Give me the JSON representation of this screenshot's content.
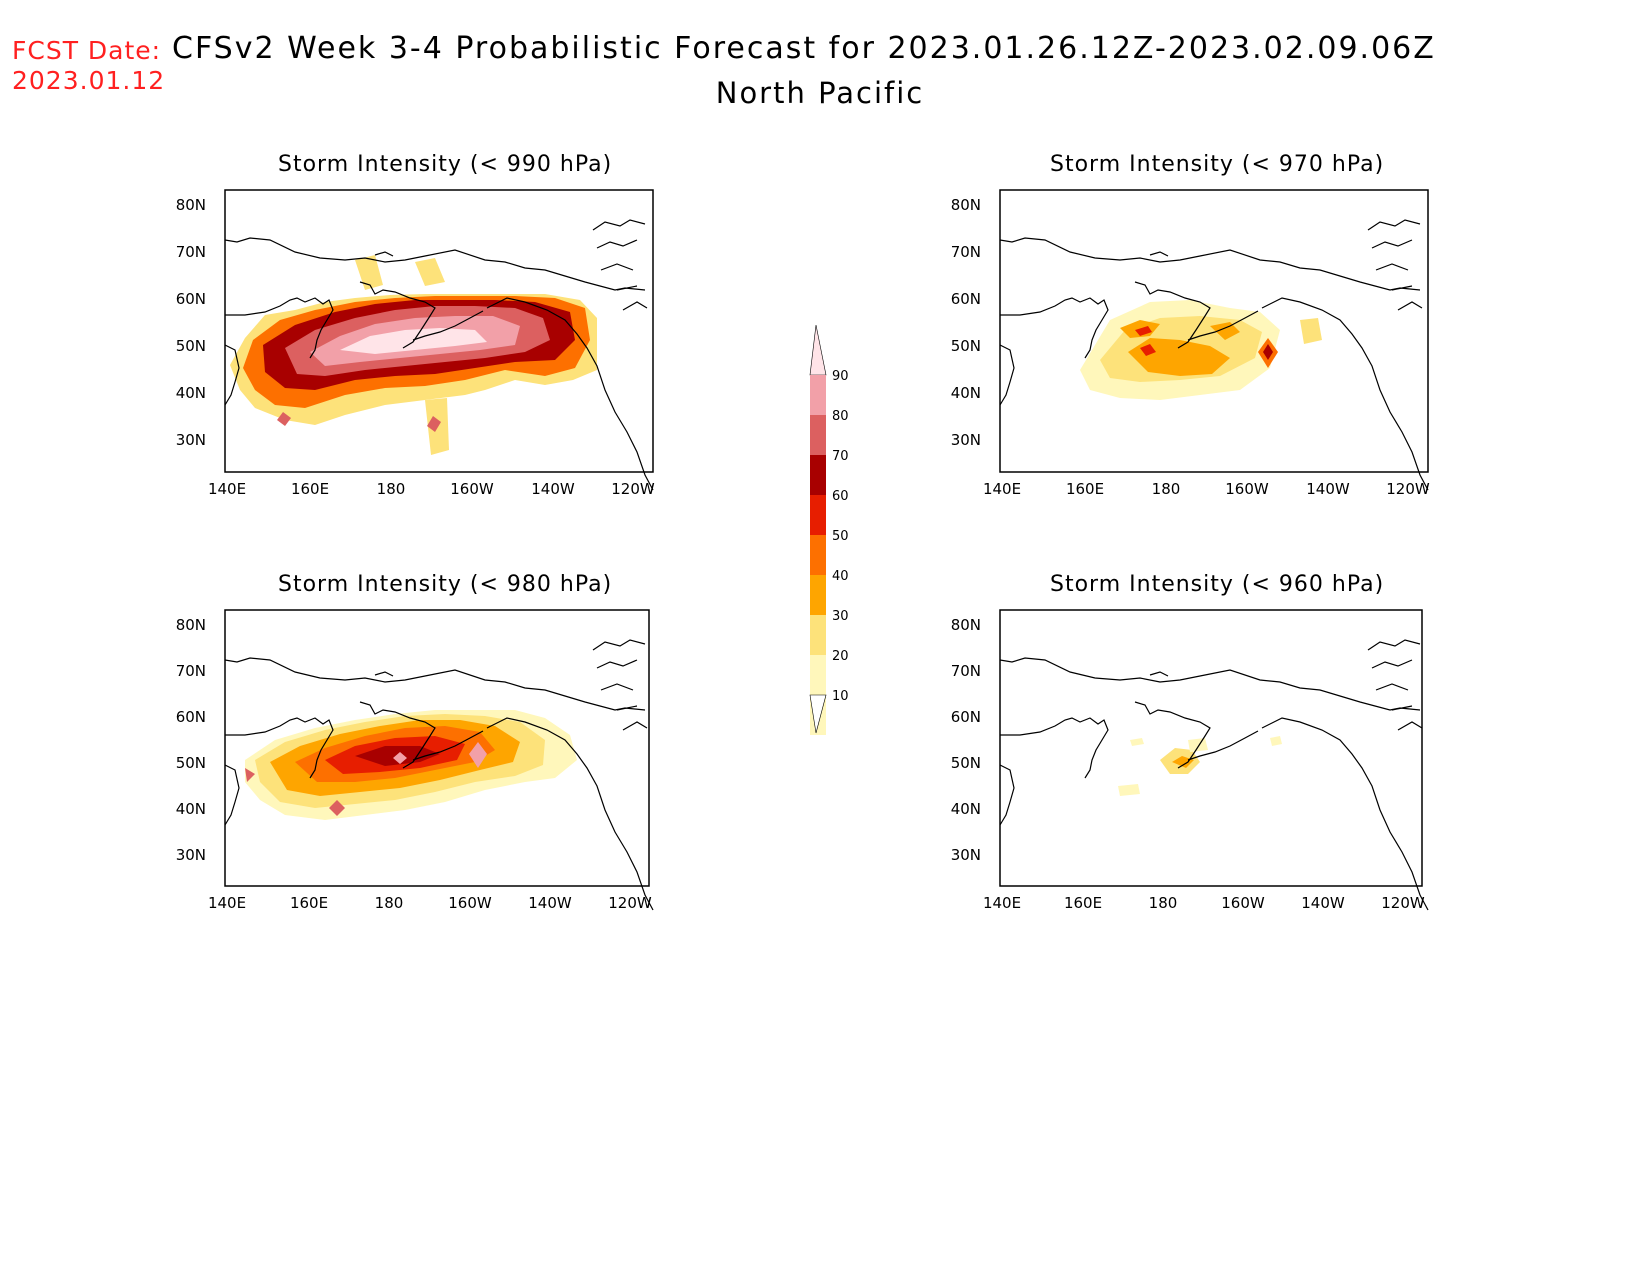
{
  "header": {
    "fcst_label": "FCST Date:",
    "fcst_date": "2023.01.12",
    "title": "CFSv2 Week 3-4 Probabilistic Forecast for 2023.01.26.12Z-2023.02.09.06Z",
    "region": "North Pacific"
  },
  "axes": {
    "lat_ticks": [
      "80N",
      "70N",
      "60N",
      "50N",
      "40N",
      "30N"
    ],
    "lon_ticks": [
      "140E",
      "160E",
      "180",
      "160W",
      "140W",
      "120W"
    ]
  },
  "panels": [
    {
      "id": "p990",
      "title": "Storm Intensity (< 990 hPa)"
    },
    {
      "id": "p970",
      "title": "Storm Intensity (< 970 hPa)"
    },
    {
      "id": "p980",
      "title": "Storm Intensity (< 980 hPa)"
    },
    {
      "id": "p960",
      "title": "Storm Intensity (< 960 hPa)"
    }
  ],
  "colorbar": {
    "levels": [
      "90",
      "80",
      "70",
      "60",
      "50",
      "40",
      "30",
      "20",
      "10"
    ],
    "colors": {
      "10": "#fff7bb",
      "20": "#fde27a",
      "30": "#fea500",
      "40": "#fd7000",
      "50": "#e71e00",
      "60": "#a80000",
      "70": "#dc6060",
      "80": "#f2a0a8",
      "90": "#ffe4e8"
    }
  }
}
